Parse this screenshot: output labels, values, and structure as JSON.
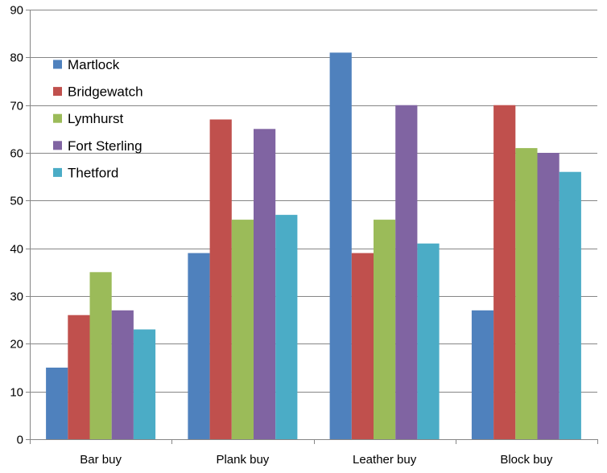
{
  "chart_data": {
    "type": "bar",
    "title": "",
    "xlabel": "",
    "ylabel": "",
    "categories": [
      "Bar buy",
      "Plank buy",
      "Leather buy",
      "Block buy"
    ],
    "ylim": [
      0,
      90
    ],
    "yticks": [
      0,
      10,
      20,
      30,
      40,
      50,
      60,
      70,
      80,
      90
    ],
    "grid": true,
    "legend_position": "top-left",
    "series": [
      {
        "name": "Martlock",
        "color": "#4F81BD",
        "values": [
          15,
          39,
          81,
          27
        ]
      },
      {
        "name": "Bridgewatch",
        "color": "#C0504D",
        "values": [
          26,
          67,
          39,
          70
        ]
      },
      {
        "name": "Lymhurst",
        "color": "#9BBB59",
        "values": [
          35,
          46,
          46,
          61
        ]
      },
      {
        "name": "Fort Sterling",
        "color": "#8064A2",
        "values": [
          27,
          65,
          70,
          60
        ]
      },
      {
        "name": "Thetford",
        "color": "#4BACC6",
        "values": [
          23,
          47,
          41,
          56
        ]
      }
    ]
  }
}
